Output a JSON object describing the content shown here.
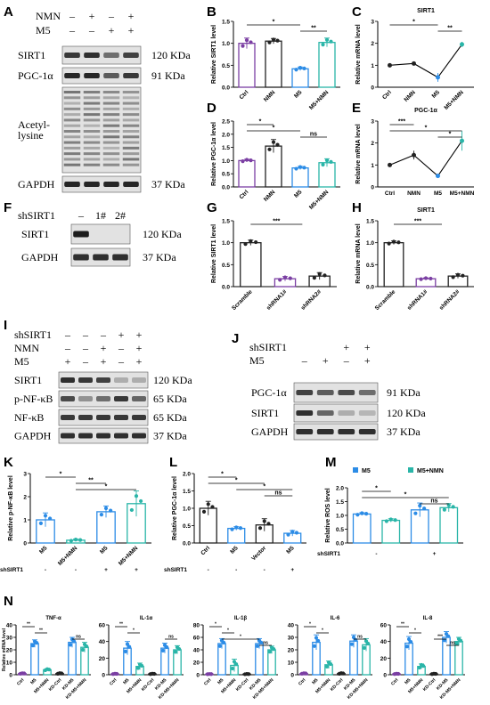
{
  "panels": [
    "A",
    "B",
    "C",
    "D",
    "E",
    "F",
    "G",
    "H",
    "I",
    "J",
    "K",
    "L",
    "M",
    "N"
  ],
  "blot_A": {
    "conditions": [
      {
        "label": "NMN",
        "marks": [
          "–",
          "+",
          "–",
          "+"
        ]
      },
      {
        "label": "M5",
        "marks": [
          "–",
          "–",
          "+",
          "+"
        ]
      }
    ],
    "rows": [
      {
        "label": "SIRT1",
        "kda": "120 KDa"
      },
      {
        "label": "PGC-1α",
        "kda": "91 KDa"
      },
      {
        "label": "Acetyl-\nlysine",
        "kda": ""
      },
      {
        "label": "GAPDH",
        "kda": "37 KDa"
      }
    ]
  },
  "blot_F": {
    "header": {
      "label": "shSIRT1",
      "marks": [
        "–",
        "1#",
        "2#"
      ]
    },
    "rows": [
      {
        "label": "SIRT1",
        "kda": "120 KDa"
      },
      {
        "label": "GAPDH",
        "kda": "37 KDa"
      }
    ]
  },
  "blot_I": {
    "conditions": [
      {
        "label": "shSIRT1",
        "marks": [
          "–",
          "–",
          "–",
          "+",
          "+"
        ]
      },
      {
        "label": "NMN",
        "marks": [
          "–",
          "–",
          "+",
          "–",
          "+"
        ]
      },
      {
        "label": "M5",
        "marks": [
          "+",
          "–",
          "+",
          "–",
          "+"
        ]
      }
    ],
    "rows": [
      {
        "label": "SIRT1",
        "kda": "120 KDa"
      },
      {
        "label": "p-NF-κB",
        "kda": "65 KDa"
      },
      {
        "label": "NF-κB",
        "kda": "65 KDa"
      },
      {
        "label": "GAPDH",
        "kda": "37 KDa"
      }
    ]
  },
  "blot_J": {
    "conditions": [
      {
        "label": "shSIRT1",
        "marks": [
          "",
          "",
          "+",
          "+"
        ]
      },
      {
        "label": "M5",
        "marks": [
          "–",
          "+",
          "–",
          "+"
        ]
      }
    ],
    "rows": [
      {
        "label": "PGC-1α",
        "kda": "91 KDa"
      },
      {
        "label": "SIRT1",
        "kda": "120 KDa"
      },
      {
        "label": "GAPDH",
        "kda": "37 KDa"
      }
    ]
  },
  "colors": {
    "purple": "#7b3fa3",
    "black": "#222222",
    "blue": "#2c8ce6",
    "teal": "#2ab5a8",
    "light": "#5fc7e8"
  },
  "chart_data": [
    {
      "id": "B",
      "type": "bar",
      "ylabel": "Relative SIRT1 level",
      "categories": [
        "Ctrl",
        "NMN",
        "M5",
        "M5+NMN"
      ],
      "values": [
        1.0,
        1.05,
        0.42,
        1.02
      ],
      "errors": [
        0.12,
        0.06,
        0.04,
        0.1
      ],
      "colors": [
        "#7b3fa3",
        "#222222",
        "#2c8ce6",
        "#2ab5a8"
      ],
      "ylim": [
        0,
        1.5
      ],
      "yticks": [
        "0.0",
        "0.5",
        "1.0",
        "1.5"
      ],
      "sig": [
        {
          "a": 0,
          "b": 2,
          "t": "*"
        },
        {
          "a": 2,
          "b": 3,
          "t": "**"
        }
      ]
    },
    {
      "id": "C",
      "type": "line",
      "title": "SIRT1",
      "ylabel": "Relative mRNA level",
      "categories": [
        "Ctrl",
        "NMN",
        "M5",
        "M5+NMN"
      ],
      "values": [
        1.0,
        1.08,
        0.45,
        1.95
      ],
      "errors": [
        0.03,
        0.06,
        0.2,
        0.12
      ],
      "colors": [
        "#222222",
        "#222222",
        "#2c8ce6",
        "#2ab5a8"
      ],
      "ylim": [
        0,
        3
      ],
      "yticks": [
        "0",
        "1",
        "2",
        "3"
      ],
      "sig": [
        {
          "a": 0,
          "b": 2,
          "t": "*"
        },
        {
          "a": 2,
          "b": 3,
          "t": "**"
        }
      ]
    },
    {
      "id": "D",
      "type": "bar",
      "ylabel": "Relative PGC-1α level",
      "categories": [
        "Ctrl",
        "NMN",
        "M5",
        "M5+NMN"
      ],
      "values": [
        1.0,
        1.55,
        0.72,
        0.92
      ],
      "errors": [
        0.05,
        0.25,
        0.06,
        0.15
      ],
      "colors": [
        "#7b3fa3",
        "#222222",
        "#2c8ce6",
        "#2ab5a8"
      ],
      "ylim": [
        0,
        2.5
      ],
      "yticks": [
        "0.0",
        "0.5",
        "1.0",
        "1.5",
        "2.0",
        "2.5"
      ],
      "sig": [
        {
          "a": 0,
          "b": 1,
          "t": "*"
        },
        {
          "a": 0,
          "b": 2,
          "t": "*"
        },
        {
          "a": 2,
          "b": 3,
          "t": "ns"
        }
      ]
    },
    {
      "id": "E",
      "type": "line",
      "title": "PGC-1α",
      "ylabel": "Relative mRNA level",
      "categories": [
        "Ctrl",
        "NMN",
        "M5",
        "M5+NMN"
      ],
      "values": [
        1.0,
        1.45,
        0.5,
        2.1
      ],
      "errors": [
        0.04,
        0.2,
        0.06,
        0.45
      ],
      "colors": [
        "#222222",
        "#222222",
        "#2c8ce6",
        "#2ab5a8"
      ],
      "ylim": [
        0,
        3
      ],
      "yticks": [
        "0",
        "1",
        "2",
        "3"
      ],
      "sig": [
        {
          "a": 0,
          "b": 1,
          "t": "***"
        },
        {
          "a": 0,
          "b": 3,
          "t": "*"
        },
        {
          "a": 2,
          "b": 3,
          "t": "*"
        }
      ]
    },
    {
      "id": "G",
      "type": "bar",
      "ylabel": "Relative SIRT1 level",
      "categories": [
        "Scramble",
        "shRNA1#",
        "shRNA2#"
      ],
      "values": [
        1.0,
        0.18,
        0.24
      ],
      "errors": [
        0.06,
        0.05,
        0.08
      ],
      "colors": [
        "#222222",
        "#7b3fa3",
        "#222222"
      ],
      "ylim": [
        0,
        1.5
      ],
      "yticks": [
        "0.0",
        "0.5",
        "1.0",
        "1.5"
      ],
      "sig": [
        {
          "a": 0,
          "b": 1.5,
          "t": "***"
        }
      ]
    },
    {
      "id": "H",
      "type": "bar",
      "title": "SIRT1",
      "ylabel": "Relative mRNA level",
      "categories": [
        "Scramble",
        "shRNA1#",
        "shRNA2#"
      ],
      "values": [
        1.0,
        0.18,
        0.24
      ],
      "errors": [
        0.04,
        0.02,
        0.05
      ],
      "colors": [
        "#222222",
        "#7b3fa3",
        "#222222"
      ],
      "ylim": [
        0,
        1.5
      ],
      "yticks": [
        "0.0",
        "0.5",
        "1.0",
        "1.5"
      ],
      "sig": [
        {
          "a": 0,
          "b": 1.5,
          "t": "***"
        }
      ]
    },
    {
      "id": "K",
      "type": "bar",
      "ylabel": "Relative p-NF-κB level",
      "categories": [
        "M5",
        "M5+NMN",
        "M5",
        "M5+NMN"
      ],
      "values": [
        1.0,
        0.12,
        1.35,
        1.7
      ],
      "errors": [
        0.3,
        0.05,
        0.25,
        0.55
      ],
      "colors": [
        "#2c8ce6",
        "#2ab5a8",
        "#2c8ce6",
        "#2ab5a8"
      ],
      "ylim": [
        0,
        3
      ],
      "yticks": [
        "0",
        "1",
        "2",
        "3"
      ],
      "sig": [
        {
          "a": 0,
          "b": 1,
          "t": "*"
        },
        {
          "a": 1,
          "b": 2,
          "t": "**"
        },
        {
          "a": 1,
          "b": 3,
          "t": "*"
        }
      ],
      "group_label": "shSIRT1",
      "group_marks": [
        "-",
        "-",
        "+",
        "+"
      ]
    },
    {
      "id": "L",
      "type": "bar",
      "ylabel": "Relative PGC-1α level",
      "categories": [
        "Ctrl",
        "M5",
        "Vector",
        "M5"
      ],
      "values": [
        1.0,
        0.42,
        0.52,
        0.28
      ],
      "errors": [
        0.2,
        0.05,
        0.18,
        0.08
      ],
      "colors": [
        "#222222",
        "#2c8ce6",
        "#222222",
        "#2c8ce6"
      ],
      "ylim": [
        0,
        2
      ],
      "yticks": [
        "0.0",
        "0.5",
        "1.0",
        "1.5",
        "2.0"
      ],
      "sig": [
        {
          "a": 0,
          "b": 1,
          "t": "*"
        },
        {
          "a": 0,
          "b": 2,
          "t": "*"
        },
        {
          "a": 1,
          "b": 3,
          "t": "*"
        },
        {
          "a": 2,
          "b": 3,
          "t": "ns"
        }
      ],
      "group_label": "shSIRT1",
      "group_marks": [
        "-",
        "-",
        "-",
        "+"
      ]
    },
    {
      "id": "M",
      "type": "bar",
      "ylabel": "Relative ROS level",
      "legend": [
        "M5",
        "M5+NMN"
      ],
      "legend_colors": [
        "#2c8ce6",
        "#2ab5a8"
      ],
      "categories": [
        "",
        "",
        "",
        ""
      ],
      "values": [
        1.05,
        0.82,
        1.2,
        1.28
      ],
      "errors": [
        0.05,
        0.06,
        0.25,
        0.15
      ],
      "colors": [
        "#2c8ce6",
        "#2ab5a8",
        "#2c8ce6",
        "#2ab5a8"
      ],
      "ylim": [
        0,
        2
      ],
      "yticks": [
        "0.0",
        "0.5",
        "1.0",
        "1.5",
        "2.0"
      ],
      "sig": [
        {
          "a": 0,
          "b": 1,
          "t": "*"
        },
        {
          "a": 0,
          "b": 3,
          "t": "*"
        },
        {
          "a": 2,
          "b": 3,
          "t": "ns"
        }
      ],
      "group_label": "shSIRT1",
      "group_marks": [
        "-",
        "+"
      ]
    },
    {
      "id": "N1",
      "type": "bar",
      "title": "TNF-α",
      "ylabel": "Relative mRNA level",
      "categories": [
        "Ctrl",
        "M5",
        "M5+NMN",
        "KD-Ctrl",
        "KD-M5",
        "KD-M5+NMN"
      ],
      "values": [
        1.0,
        25.0,
        4.0,
        1.0,
        26.0,
        22.0
      ],
      "errors": [
        0.3,
        3,
        0.8,
        0.4,
        4,
        4
      ],
      "colors": [
        "#7b3fa3",
        "#2c8ce6",
        "#2ab5a8",
        "#222222",
        "#2c8ce6",
        "#2ab5a8"
      ],
      "ylim": [
        0,
        40
      ],
      "yticks": [
        "0",
        "10",
        "20",
        "30",
        "40"
      ],
      "sig": [
        {
          "a": 0,
          "b": 1,
          "t": "**"
        },
        {
          "a": 1,
          "b": 2,
          "t": "**"
        },
        {
          "a": 4,
          "b": 5,
          "t": "ns"
        }
      ]
    },
    {
      "id": "N2",
      "type": "bar",
      "title": "IL-1α",
      "ylabel": "",
      "categories": [
        "Ctrl",
        "M5",
        "M5+NMN",
        "KD-Ctrl",
        "KD-M5",
        "KD-M5+NMN"
      ],
      "values": [
        1.0,
        32.0,
        10.0,
        1.0,
        32.0,
        30.0
      ],
      "errors": [
        0.3,
        8,
        4,
        0.4,
        6,
        5
      ],
      "colors": [
        "#7b3fa3",
        "#2c8ce6",
        "#2ab5a8",
        "#222222",
        "#2c8ce6",
        "#2ab5a8"
      ],
      "ylim": [
        0,
        60
      ],
      "yticks": [
        "0",
        "20",
        "40",
        "60"
      ],
      "sig": [
        {
          "a": 0,
          "b": 1,
          "t": "**"
        },
        {
          "a": 1,
          "b": 2,
          "t": "*"
        },
        {
          "a": 4,
          "b": 5,
          "t": "ns"
        }
      ]
    },
    {
      "id": "N3",
      "type": "bar",
      "title": "IL-1β",
      "ylabel": "",
      "categories": [
        "Ctrl",
        "M5",
        "M5+NMN",
        "KD-Ctrl",
        "KD-M5",
        "KD-M5+NMN"
      ],
      "values": [
        1.0,
        50.0,
        15.0,
        1.0,
        50.0,
        40.0
      ],
      "errors": [
        0.3,
        8,
        10,
        0.4,
        8,
        6
      ],
      "colors": [
        "#7b3fa3",
        "#2c8ce6",
        "#2ab5a8",
        "#222222",
        "#2c8ce6",
        "#2ab5a8"
      ],
      "ylim": [
        0,
        80
      ],
      "yticks": [
        "0",
        "20",
        "40",
        "60",
        "80"
      ],
      "sig": [
        {
          "a": 0,
          "b": 1,
          "t": "*"
        },
        {
          "a": 1,
          "b": 2,
          "t": "*"
        },
        {
          "a": 1,
          "b": 4,
          "t": "*"
        },
        {
          "a": 4,
          "b": 5,
          "t": "ns"
        }
      ]
    },
    {
      "id": "N4",
      "type": "bar",
      "title": "IL-6",
      "ylabel": "",
      "categories": [
        "Ctrl",
        "M5",
        "M5+NMN",
        "KD-Ctrl",
        "KD-M5",
        "KD-M5+NMN"
      ],
      "values": [
        1.0,
        26.0,
        8.0,
        1.0,
        27.0,
        24.0
      ],
      "errors": [
        0.3,
        6,
        3,
        0.4,
        5,
        5
      ],
      "colors": [
        "#7b3fa3",
        "#2c8ce6",
        "#2ab5a8",
        "#222222",
        "#2c8ce6",
        "#2ab5a8"
      ],
      "ylim": [
        0,
        40
      ],
      "yticks": [
        "0",
        "10",
        "20",
        "30",
        "40"
      ],
      "sig": [
        {
          "a": 0,
          "b": 1,
          "t": "*"
        },
        {
          "a": 1,
          "b": 2,
          "t": "*"
        },
        {
          "a": 4,
          "b": 5,
          "t": "ns"
        }
      ]
    },
    {
      "id": "N5",
      "type": "bar",
      "title": "IL-8",
      "ylabel": "",
      "categories": [
        "Ctrl",
        "M5",
        "M5+NMN",
        "KD-Ctrl",
        "KD-M5",
        "KD-M5+NMN"
      ],
      "values": [
        1.0,
        38.0,
        10.0,
        1.0,
        45.0,
        40.0
      ],
      "errors": [
        0.3,
        8,
        3,
        0.4,
        7,
        5
      ],
      "colors": [
        "#7b3fa3",
        "#2c8ce6",
        "#2ab5a8",
        "#222222",
        "#2c8ce6",
        "#2ab5a8"
      ],
      "ylim": [
        0,
        60
      ],
      "yticks": [
        "0",
        "20",
        "40",
        "60"
      ],
      "sig": [
        {
          "a": 0,
          "b": 1,
          "t": "**"
        },
        {
          "a": 1,
          "b": 2,
          "t": "*"
        },
        {
          "a": 3,
          "b": 4,
          "t": "***"
        },
        {
          "a": 4,
          "b": 5,
          "t": "ns"
        }
      ]
    }
  ]
}
